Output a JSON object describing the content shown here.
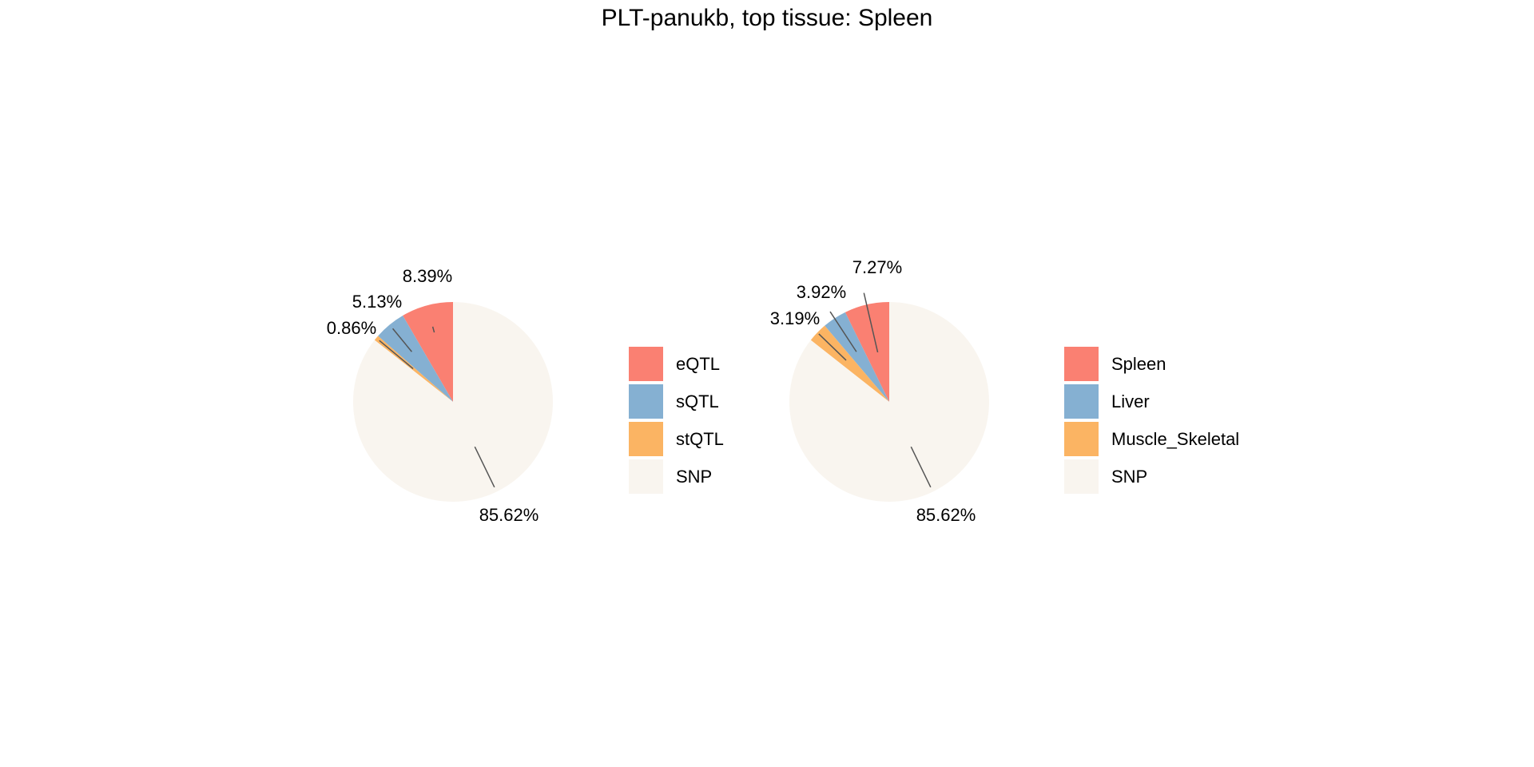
{
  "title": "PLT-panukb, top tissue: Spleen",
  "colors": {
    "red": "#FA8072",
    "blue": "#85B0D2",
    "orange": "#FBB463",
    "snp": "#F9F5EF",
    "leader": "#555555"
  },
  "chart_data": [
    {
      "type": "pie",
      "title": "",
      "start_angle_deg": 90,
      "direction": "counterclockwise",
      "slices": [
        {
          "label": "eQTL",
          "value": 8.39,
          "display": "8.39%",
          "color": "#FA8072"
        },
        {
          "label": "sQTL",
          "value": 5.13,
          "display": "5.13%",
          "color": "#85B0D2"
        },
        {
          "label": "stQTL",
          "value": 0.86,
          "display": "0.86%",
          "color": "#FBB463"
        },
        {
          "label": "SNP",
          "value": 85.62,
          "display": "85.62%",
          "color": "#F9F5EF"
        }
      ],
      "legend": [
        "eQTL",
        "sQTL",
        "stQTL",
        "SNP"
      ],
      "legend_position": "right"
    },
    {
      "type": "pie",
      "title": "",
      "start_angle_deg": 90,
      "direction": "counterclockwise",
      "slices": [
        {
          "label": "Spleen",
          "value": 7.27,
          "display": "7.27%",
          "color": "#FA8072"
        },
        {
          "label": "Liver",
          "value": 3.92,
          "display": "3.92%",
          "color": "#85B0D2"
        },
        {
          "label": "Muscle_Skeletal",
          "value": 3.19,
          "display": "3.19%",
          "color": "#FBB463"
        },
        {
          "label": "SNP",
          "value": 85.62,
          "display": "85.62%",
          "color": "#F9F5EF"
        }
      ],
      "legend": [
        "Spleen",
        "Liver",
        "Muscle_Skeletal",
        "SNP"
      ],
      "legend_position": "right"
    }
  ]
}
